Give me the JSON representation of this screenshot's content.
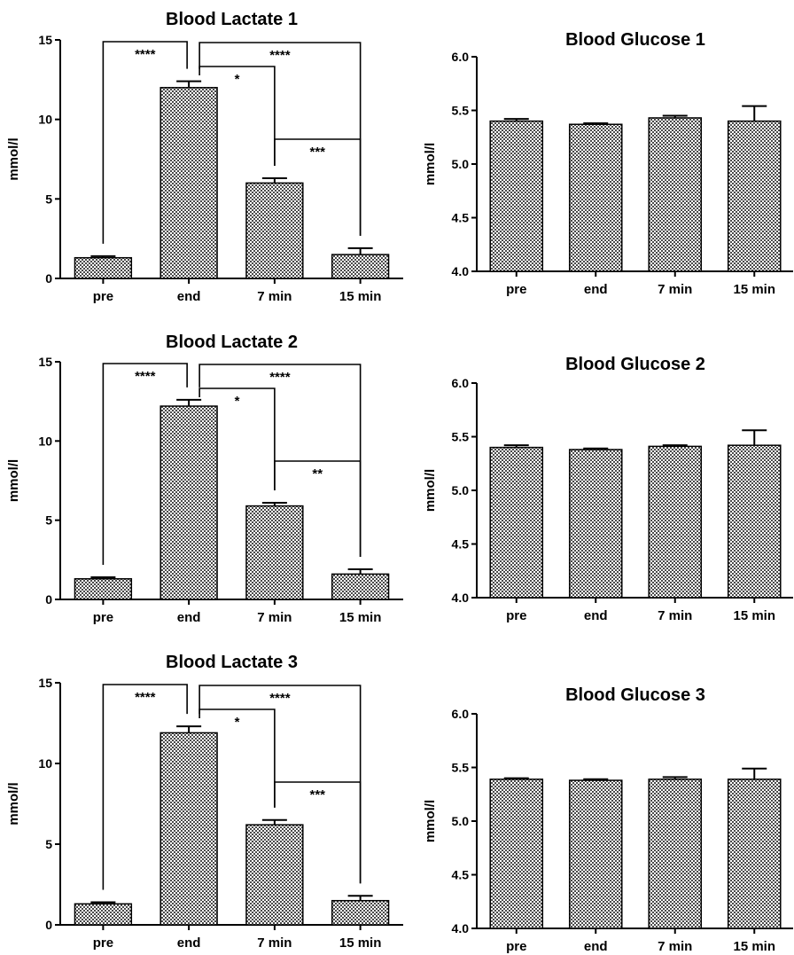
{
  "colors": {
    "bar_fill": "#9a9a9a",
    "bar_stroke": "#000000",
    "axis": "#000000",
    "background": "#ffffff"
  },
  "chart_data": [
    {
      "type": "bar",
      "title": "Blood Lactate 1",
      "xlabel": "",
      "ylabel": "mmol/l",
      "categories": [
        "pre",
        "end",
        "7 min",
        "15 min"
      ],
      "values": [
        1.3,
        12.0,
        6.0,
        1.5
      ],
      "error": [
        0.1,
        0.4,
        0.3,
        0.4
      ],
      "ylim": [
        0,
        15
      ],
      "yticks": [
        "0",
        "5",
        "10",
        "15"
      ],
      "yticks_values": [
        0,
        5,
        10,
        15
      ],
      "significance": [
        {
          "from": "pre",
          "to": "end",
          "label": "****"
        },
        {
          "from": "end",
          "to": "15 min",
          "label": "****"
        },
        {
          "from": "end",
          "to": "7 min",
          "label": "*"
        },
        {
          "from": "7 min",
          "to": "15 min",
          "label": "***"
        }
      ]
    },
    {
      "type": "bar",
      "title": "Blood Glucose 1",
      "xlabel": "",
      "ylabel": "mmol/l",
      "categories": [
        "pre",
        "end",
        "7 min",
        "15 min"
      ],
      "values": [
        5.4,
        5.37,
        5.43,
        5.4
      ],
      "error": [
        0.02,
        0.01,
        0.02,
        0.14
      ],
      "ylim": [
        4.0,
        6.0
      ],
      "yticks": [
        "4.0",
        "4.5",
        "5.0",
        "5.5",
        "6.0"
      ],
      "yticks_values": [
        4.0,
        4.5,
        5.0,
        5.5,
        6.0
      ],
      "significance": []
    },
    {
      "type": "bar",
      "title": "Blood Lactate 2",
      "xlabel": "",
      "ylabel": "mmol/l",
      "categories": [
        "pre",
        "end",
        "7 min",
        "15 min"
      ],
      "values": [
        1.3,
        12.2,
        5.9,
        1.6
      ],
      "error": [
        0.1,
        0.4,
        0.2,
        0.3
      ],
      "ylim": [
        0,
        15
      ],
      "yticks": [
        "0",
        "5",
        "10",
        "15"
      ],
      "yticks_values": [
        0,
        5,
        10,
        15
      ],
      "significance": [
        {
          "from": "pre",
          "to": "end",
          "label": "****"
        },
        {
          "from": "end",
          "to": "15 min",
          "label": "****"
        },
        {
          "from": "end",
          "to": "7 min",
          "label": "*"
        },
        {
          "from": "7 min",
          "to": "15 min",
          "label": "**"
        }
      ]
    },
    {
      "type": "bar",
      "title": "Blood Glucose 2",
      "xlabel": "",
      "ylabel": "mmol/l",
      "categories": [
        "pre",
        "end",
        "7 min",
        "15 min"
      ],
      "values": [
        5.4,
        5.38,
        5.41,
        5.42
      ],
      "error": [
        0.02,
        0.01,
        0.01,
        0.14
      ],
      "ylim": [
        4.0,
        6.0
      ],
      "yticks": [
        "4.0",
        "4.5",
        "5.0",
        "5.5",
        "6.0"
      ],
      "yticks_values": [
        4.0,
        4.5,
        5.0,
        5.5,
        6.0
      ],
      "significance": []
    },
    {
      "type": "bar",
      "title": "Blood Lactate 3",
      "xlabel": "",
      "ylabel": "mmol/l",
      "categories": [
        "pre",
        "end",
        "7 min",
        "15 min"
      ],
      "values": [
        1.3,
        11.9,
        6.2,
        1.5
      ],
      "error": [
        0.1,
        0.4,
        0.3,
        0.3
      ],
      "ylim": [
        0,
        15
      ],
      "yticks": [
        "0",
        "5",
        "10",
        "15"
      ],
      "yticks_values": [
        0,
        5,
        10,
        15
      ],
      "significance": [
        {
          "from": "pre",
          "to": "end",
          "label": "****"
        },
        {
          "from": "end",
          "to": "15 min",
          "label": "****"
        },
        {
          "from": "end",
          "to": "7 min",
          "label": "*"
        },
        {
          "from": "7 min",
          "to": "15 min",
          "label": "***"
        }
      ]
    },
    {
      "type": "bar",
      "title": "Blood Glucose 3",
      "xlabel": "",
      "ylabel": "mmol/l",
      "categories": [
        "pre",
        "end",
        "7 min",
        "15 min"
      ],
      "values": [
        5.39,
        5.38,
        5.39,
        5.39
      ],
      "error": [
        0.01,
        0.01,
        0.02,
        0.1
      ],
      "ylim": [
        4.0,
        6.0
      ],
      "yticks": [
        "4.0",
        "4.5",
        "5.0",
        "5.5",
        "6.0"
      ],
      "yticks_values": [
        4.0,
        4.5,
        5.0,
        5.5,
        6.0
      ],
      "significance": []
    }
  ]
}
